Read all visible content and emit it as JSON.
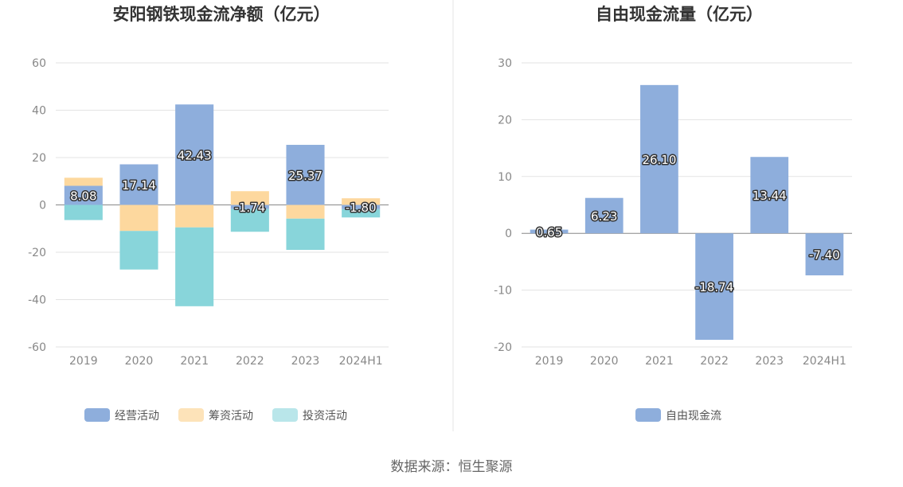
{
  "colors": {
    "operating": "#8eaedc",
    "financing": "#fdd89e",
    "investing": "#88d5da",
    "investing_legend": "#b9e6ea",
    "financing_legend": "#fde3b9",
    "fcf": "#8eaedc"
  },
  "source": "数据来源：恒生聚源",
  "chart_data": [
    {
      "type": "bar",
      "stacked": true,
      "title": "安阳钢铁现金流净额（亿元）",
      "categories": [
        "2019",
        "2020",
        "2021",
        "2022",
        "2023",
        "2024H1"
      ],
      "ylim": [
        -60,
        60
      ],
      "yticks": [
        60,
        40,
        20,
        0,
        -20,
        -40,
        -60
      ],
      "grid": true,
      "legend_position": "bottom",
      "series": [
        {
          "name": "经营活动",
          "key": "operating",
          "values": [
            8.08,
            17.14,
            42.43,
            -1.74,
            25.37,
            -1.8
          ]
        },
        {
          "name": "筹资活动",
          "key": "financing",
          "values": [
            3.4,
            -11.0,
            -9.5,
            5.8,
            -5.8,
            2.8
          ]
        },
        {
          "name": "投资活动",
          "key": "investing",
          "values": [
            -6.4,
            -16.3,
            -33.3,
            -9.6,
            -13.2,
            -3.5
          ]
        }
      ],
      "data_labels": [
        "8.08",
        "17.14",
        "42.43",
        "-1.74",
        "25.37",
        "-1.80"
      ]
    },
    {
      "type": "bar",
      "title": "自由现金流量（亿元）",
      "categories": [
        "2019",
        "2020",
        "2021",
        "2022",
        "2023",
        "2024H1"
      ],
      "ylim": [
        -20,
        30
      ],
      "yticks": [
        30,
        20,
        10,
        0,
        -10,
        -20
      ],
      "grid": true,
      "legend_position": "bottom",
      "series": [
        {
          "name": "自由现金流",
          "key": "fcf",
          "values": [
            0.65,
            6.23,
            26.1,
            -18.74,
            13.44,
            -7.4
          ]
        }
      ],
      "data_labels": [
        "0.65",
        "6.23",
        "26.10",
        "-18.74",
        "13.44",
        "-7.40"
      ]
    }
  ]
}
